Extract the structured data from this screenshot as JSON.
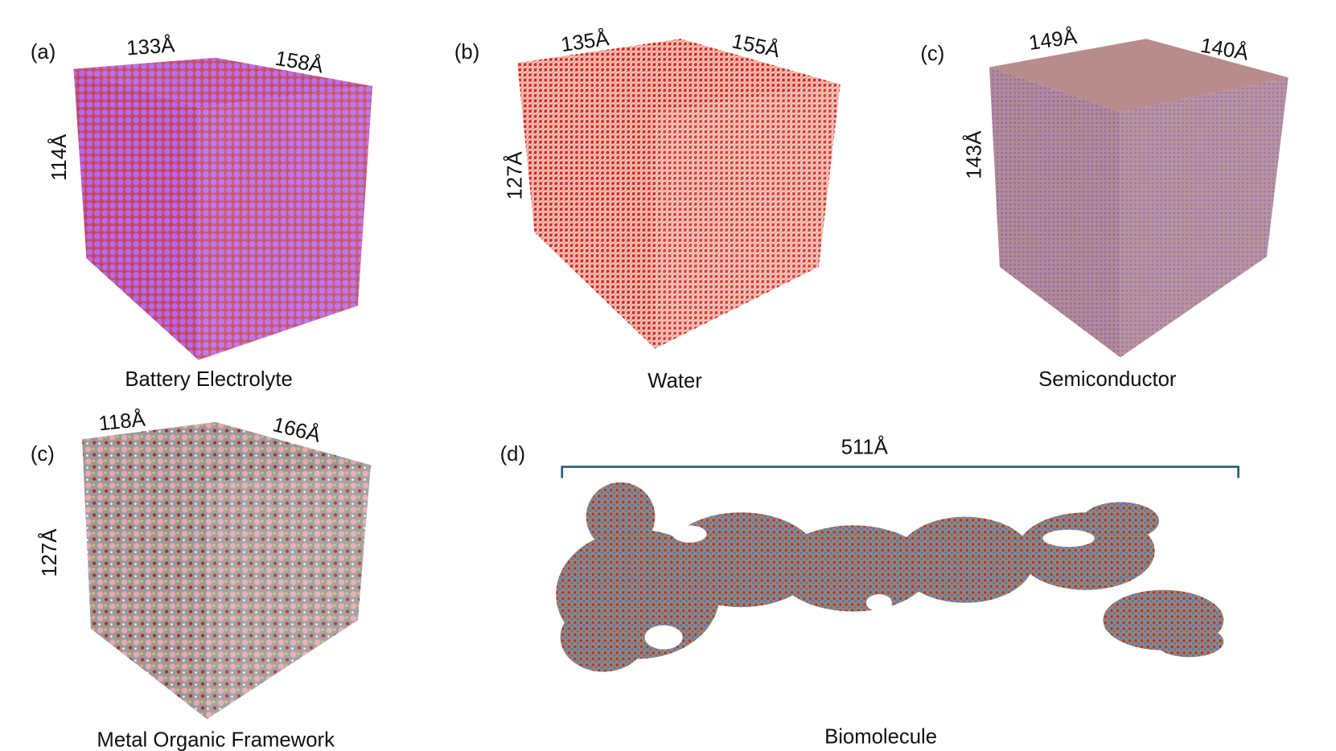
{
  "panels": [
    {
      "label": "(a)",
      "dims": [
        "133Å",
        "158Å",
        "114Å"
      ],
      "caption": "Battery Electrolyte"
    },
    {
      "label": "(b)",
      "dims": [
        "135Å",
        "155Å",
        "127Å"
      ],
      "caption": "Water"
    },
    {
      "label": "(c)",
      "dims": [
        "149Å",
        "140Å",
        "143Å"
      ],
      "caption": "Semiconductor"
    },
    {
      "label": "(c)",
      "dims": [
        "118Å",
        "166Å",
        "127Å"
      ],
      "caption": "Metal Organic Framework"
    },
    {
      "label": "(d)",
      "dims": [
        "511Å"
      ],
      "caption": "Biomolecule"
    }
  ]
}
